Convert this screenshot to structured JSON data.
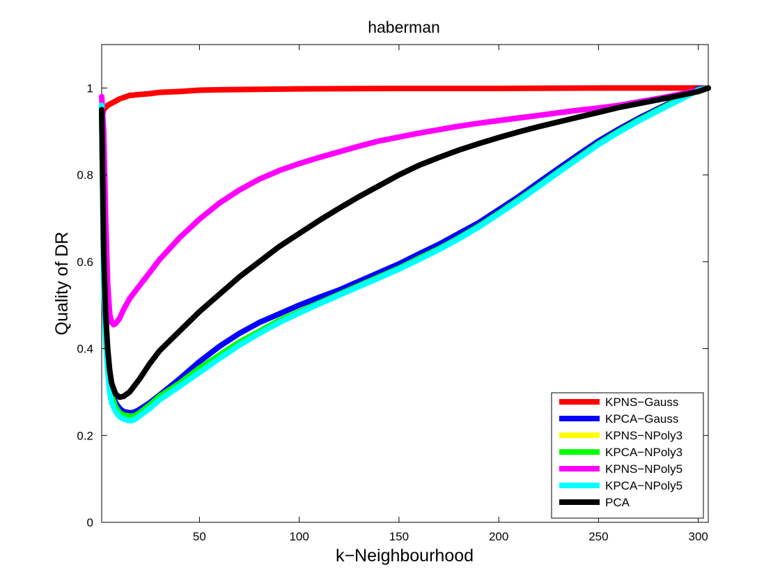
{
  "chart_data": {
    "type": "line",
    "title": "haberman",
    "xlabel": "k−Neighbourhood",
    "ylabel": "Quality of DR",
    "xlim": [
      1,
      305
    ],
    "ylim": [
      0,
      1.1
    ],
    "xticks": [
      50,
      100,
      150,
      200,
      250,
      300
    ],
    "yticks": [
      0,
      0.2,
      0.4,
      0.6,
      0.8,
      1
    ],
    "ytick_labels": [
      "0",
      "0.2",
      "0.4",
      "0.6",
      "0.8",
      "1"
    ],
    "grid": false,
    "legend_position": "bottom-right",
    "series": [
      {
        "name": "KPNS−Gauss",
        "color": "#ff0000",
        "x": [
          1,
          2,
          4,
          6,
          8,
          10,
          12,
          15,
          20,
          25,
          30,
          40,
          50,
          60,
          80,
          100,
          150,
          200,
          250,
          300,
          305
        ],
        "y": [
          0.93,
          0.95,
          0.96,
          0.965,
          0.97,
          0.975,
          0.978,
          0.983,
          0.985,
          0.987,
          0.99,
          0.992,
          0.995,
          0.996,
          0.997,
          0.998,
          0.999,
          0.999,
          1.0,
          1.0,
          1.0
        ]
      },
      {
        "name": "KPCA−Gauss",
        "color": "#0000ff",
        "x": [
          1,
          2,
          3,
          4,
          5,
          6,
          8,
          10,
          12,
          14,
          16,
          18,
          20,
          25,
          30,
          40,
          50,
          60,
          70,
          80,
          90,
          100,
          110,
          120,
          130,
          140,
          150,
          160,
          170,
          180,
          190,
          200,
          210,
          220,
          230,
          240,
          250,
          260,
          270,
          280,
          290,
          300,
          305
        ],
        "y": [
          0.96,
          0.6,
          0.45,
          0.38,
          0.33,
          0.3,
          0.275,
          0.262,
          0.255,
          0.253,
          0.252,
          0.255,
          0.26,
          0.275,
          0.293,
          0.33,
          0.37,
          0.405,
          0.435,
          0.46,
          0.48,
          0.5,
          0.518,
          0.535,
          0.555,
          0.575,
          0.595,
          0.618,
          0.64,
          0.665,
          0.69,
          0.72,
          0.75,
          0.783,
          0.815,
          0.847,
          0.878,
          0.905,
          0.93,
          0.953,
          0.975,
          0.998,
          1.0
        ]
      },
      {
        "name": "KPNS−NPoly3",
        "color": "#ffff00",
        "x": [
          1,
          2,
          3,
          4,
          5,
          6,
          8,
          10,
          12,
          14,
          16,
          18,
          20,
          25,
          30,
          40,
          50,
          60,
          70,
          80,
          90,
          100,
          110,
          120,
          130,
          140,
          150,
          160,
          170,
          180,
          190,
          200,
          210,
          220,
          230,
          240,
          250,
          260,
          270,
          280,
          290,
          300,
          305
        ],
        "y": [
          0.96,
          0.58,
          0.44,
          0.37,
          0.32,
          0.29,
          0.265,
          0.252,
          0.247,
          0.245,
          0.244,
          0.246,
          0.252,
          0.27,
          0.29,
          0.32,
          0.355,
          0.385,
          0.415,
          0.44,
          0.465,
          0.485,
          0.505,
          0.525,
          0.545,
          0.565,
          0.585,
          0.608,
          0.63,
          0.655,
          0.682,
          0.712,
          0.743,
          0.775,
          0.808,
          0.84,
          0.872,
          0.9,
          0.926,
          0.95,
          0.973,
          0.996,
          1.0
        ]
      },
      {
        "name": "KPCA−NPoly3",
        "color": "#00ff00",
        "x": [
          1,
          2,
          3,
          4,
          5,
          6,
          8,
          10,
          12,
          14,
          16,
          18,
          20,
          25,
          30,
          40,
          50,
          60,
          70,
          80,
          90,
          100,
          110,
          120,
          130,
          140,
          150,
          160,
          170,
          180,
          190,
          200,
          210,
          220,
          230,
          240,
          250,
          260,
          270,
          280,
          290,
          300,
          305
        ],
        "y": [
          0.96,
          0.58,
          0.44,
          0.37,
          0.32,
          0.29,
          0.265,
          0.252,
          0.247,
          0.245,
          0.244,
          0.246,
          0.252,
          0.27,
          0.29,
          0.32,
          0.355,
          0.385,
          0.415,
          0.44,
          0.465,
          0.485,
          0.505,
          0.525,
          0.545,
          0.565,
          0.585,
          0.608,
          0.63,
          0.655,
          0.682,
          0.712,
          0.743,
          0.775,
          0.808,
          0.84,
          0.872,
          0.9,
          0.926,
          0.95,
          0.973,
          0.996,
          1.0
        ]
      },
      {
        "name": "KPNS−NPoly5",
        "color": "#ff00ff",
        "x": [
          1,
          2,
          3,
          4,
          5,
          6,
          7,
          8,
          10,
          12,
          15,
          20,
          25,
          30,
          40,
          50,
          60,
          70,
          80,
          90,
          100,
          110,
          120,
          130,
          140,
          150,
          160,
          170,
          180,
          190,
          200,
          210,
          220,
          230,
          240,
          250,
          260,
          270,
          280,
          290,
          300,
          305
        ],
        "y": [
          0.98,
          0.9,
          0.7,
          0.55,
          0.48,
          0.46,
          0.455,
          0.458,
          0.47,
          0.49,
          0.515,
          0.545,
          0.575,
          0.605,
          0.655,
          0.698,
          0.735,
          0.765,
          0.79,
          0.81,
          0.826,
          0.84,
          0.853,
          0.866,
          0.878,
          0.887,
          0.896,
          0.904,
          0.912,
          0.919,
          0.925,
          0.931,
          0.937,
          0.943,
          0.949,
          0.954,
          0.96,
          0.968,
          0.976,
          0.985,
          0.995,
          1.0
        ]
      },
      {
        "name": "KPCA−NPoly5",
        "color": "#00ffff",
        "x": [
          1,
          2,
          3,
          4,
          5,
          6,
          8,
          10,
          12,
          14,
          16,
          18,
          20,
          25,
          30,
          40,
          50,
          60,
          70,
          80,
          90,
          100,
          110,
          120,
          130,
          140,
          150,
          160,
          170,
          180,
          190,
          200,
          210,
          220,
          230,
          240,
          250,
          260,
          270,
          280,
          290,
          300,
          305
        ],
        "y": [
          0.96,
          0.56,
          0.42,
          0.35,
          0.3,
          0.275,
          0.255,
          0.243,
          0.238,
          0.235,
          0.234,
          0.238,
          0.245,
          0.262,
          0.282,
          0.313,
          0.345,
          0.377,
          0.408,
          0.435,
          0.46,
          0.482,
          0.503,
          0.523,
          0.543,
          0.563,
          0.583,
          0.605,
          0.628,
          0.653,
          0.68,
          0.71,
          0.741,
          0.773,
          0.806,
          0.838,
          0.87,
          0.898,
          0.924,
          0.948,
          0.971,
          0.995,
          1.0
        ]
      },
      {
        "name": "PCA",
        "color": "#000000",
        "x": [
          1,
          2,
          3,
          4,
          5,
          6,
          8,
          10,
          12,
          15,
          20,
          25,
          30,
          40,
          50,
          60,
          70,
          80,
          90,
          100,
          110,
          120,
          130,
          140,
          150,
          160,
          170,
          180,
          190,
          200,
          210,
          220,
          230,
          240,
          250,
          260,
          270,
          280,
          290,
          300,
          305
        ],
        "y": [
          0.95,
          0.62,
          0.48,
          0.4,
          0.35,
          0.32,
          0.295,
          0.288,
          0.29,
          0.3,
          0.33,
          0.365,
          0.395,
          0.44,
          0.485,
          0.525,
          0.565,
          0.6,
          0.635,
          0.665,
          0.695,
          0.723,
          0.75,
          0.775,
          0.8,
          0.822,
          0.84,
          0.857,
          0.872,
          0.886,
          0.899,
          0.911,
          0.922,
          0.933,
          0.944,
          0.955,
          0.964,
          0.973,
          0.982,
          0.992,
          1.0
        ]
      }
    ]
  }
}
